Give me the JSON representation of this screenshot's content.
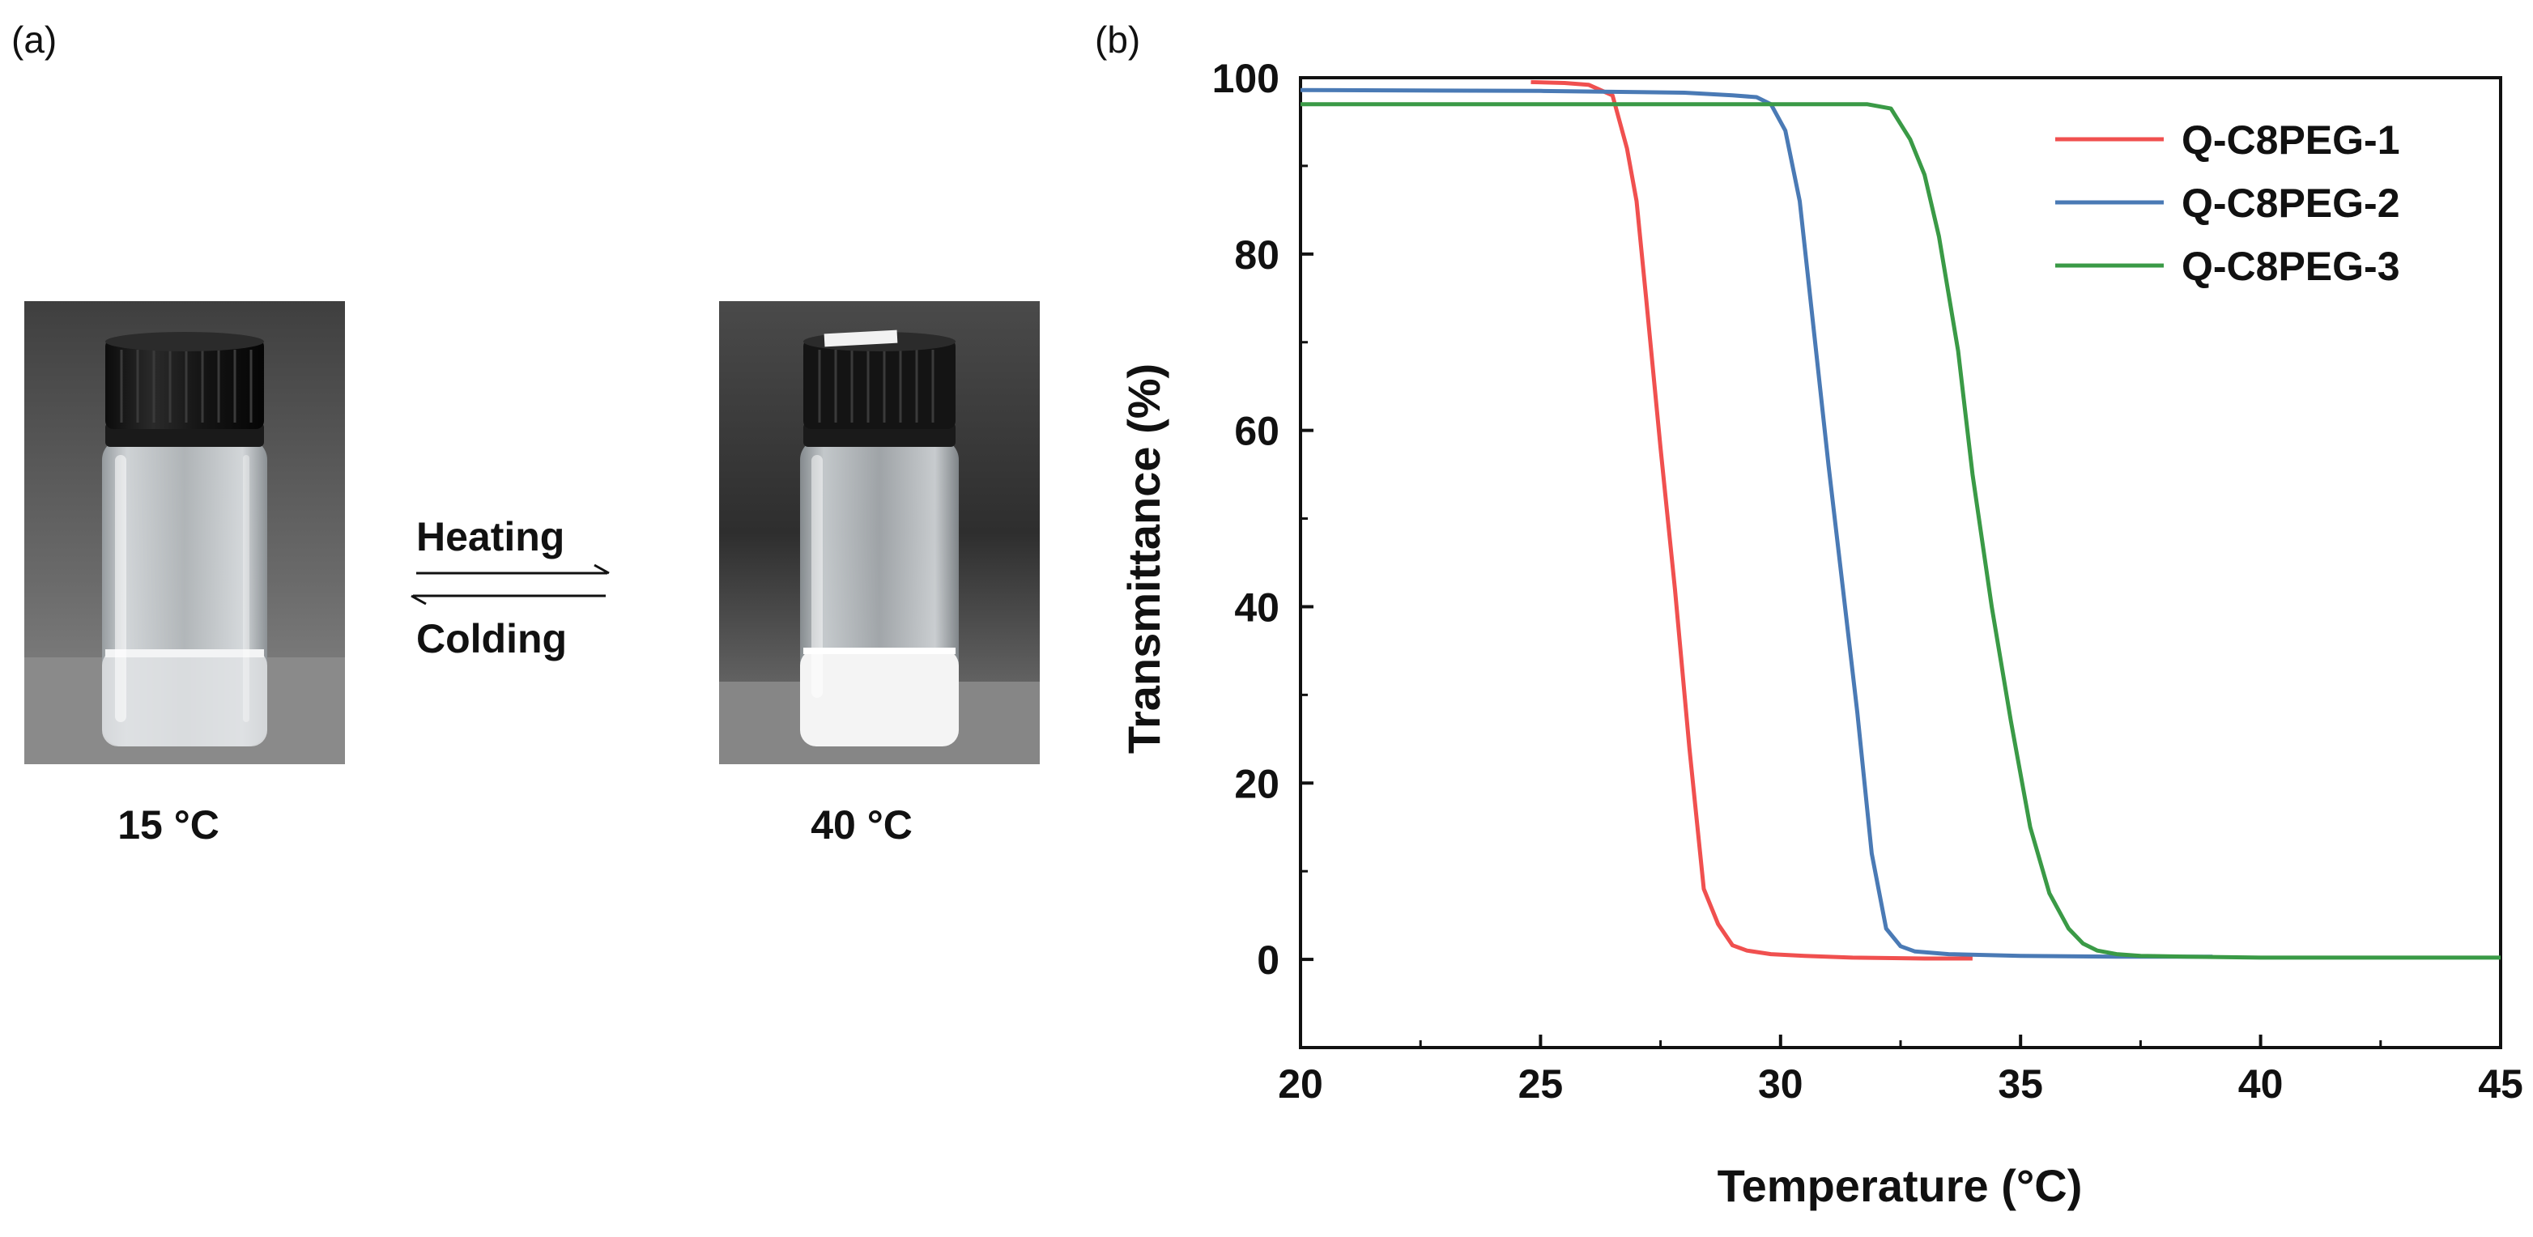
{
  "panel_a": {
    "label": "(a)",
    "heating_label": "Heating",
    "colding_label": "Colding",
    "left_photo": {
      "temperature_label": "15 °C",
      "state": "clear"
    },
    "right_photo": {
      "temperature_label": "40 °C",
      "state": "turbid"
    },
    "colors": {
      "cap": "#111111",
      "background": "#3a3a3a",
      "clear_liquid": "#d8dadc",
      "turbid_liquid": "#f2f2f2"
    }
  },
  "panel_b": {
    "label": "(b)"
  },
  "chart_data": {
    "type": "line",
    "title": "",
    "xlabel": "Temperature (°C)",
    "ylabel": "Transmittance (%)",
    "xlim": [
      20,
      45
    ],
    "ylim": [
      -10,
      100
    ],
    "xticks": [
      20,
      25,
      30,
      35,
      40,
      45
    ],
    "yticks": [
      0,
      20,
      40,
      60,
      80,
      100
    ],
    "grid": false,
    "legend_position": "top-right",
    "series": [
      {
        "name": "Q-C8PEG-1",
        "color": "#f0504f",
        "x": [
          24.8,
          25.5,
          26.0,
          26.5,
          26.8,
          27.0,
          27.2,
          27.5,
          27.8,
          28.1,
          28.4,
          28.7,
          29.0,
          29.3,
          29.8,
          30.5,
          31.5,
          33.0,
          34.0
        ],
        "y": [
          99.5,
          99.4,
          99.2,
          98.0,
          92.0,
          86.0,
          75.0,
          58.0,
          42.0,
          24.0,
          8.0,
          4.0,
          1.6,
          1.0,
          0.6,
          0.4,
          0.2,
          0.1,
          0.1
        ]
      },
      {
        "name": "Q-C8PEG-2",
        "color": "#4a7ab5",
        "x": [
          20.0,
          25.0,
          28.0,
          29.0,
          29.5,
          29.8,
          30.1,
          30.4,
          30.7,
          31.0,
          31.3,
          31.6,
          31.9,
          32.2,
          32.5,
          32.8,
          33.5,
          35.0,
          37.0,
          39.0
        ],
        "y": [
          98.6,
          98.5,
          98.3,
          98.0,
          97.8,
          97.0,
          94.0,
          86.0,
          71.0,
          56.0,
          42.0,
          28.0,
          12.0,
          3.5,
          1.5,
          0.9,
          0.6,
          0.4,
          0.3,
          0.3
        ]
      },
      {
        "name": "Q-C8PEG-3",
        "color": "#3a9a46",
        "x": [
          20.0,
          25.0,
          30.0,
          31.0,
          31.8,
          32.3,
          32.7,
          33.0,
          33.3,
          33.7,
          34.0,
          34.4,
          34.8,
          35.2,
          35.6,
          36.0,
          36.3,
          36.6,
          37.0,
          37.5,
          38.5,
          40.0,
          45.0
        ],
        "y": [
          97.0,
          97.0,
          97.0,
          97.0,
          97.0,
          96.5,
          93.0,
          89.0,
          82.0,
          69.0,
          55.0,
          40.0,
          27.0,
          15.0,
          7.5,
          3.5,
          1.8,
          1.0,
          0.6,
          0.4,
          0.3,
          0.2,
          0.2
        ]
      }
    ]
  }
}
